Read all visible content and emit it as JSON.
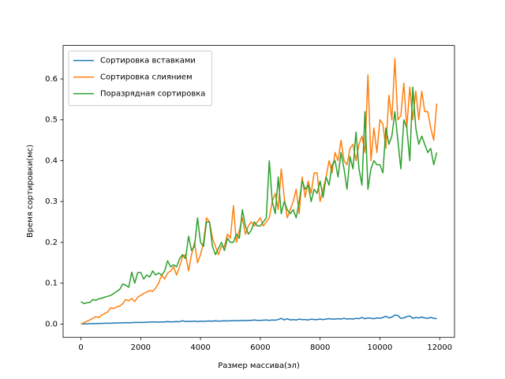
{
  "chart_data": {
    "type": "line",
    "xlabel": "Размер массива(эл)",
    "ylabel": "Время сортировки(мс)",
    "x": [
      0,
      100,
      200,
      300,
      400,
      500,
      600,
      700,
      800,
      900,
      1000,
      1100,
      1200,
      1300,
      1400,
      1500,
      1600,
      1700,
      1800,
      1900,
      2000,
      2100,
      2200,
      2300,
      2400,
      2500,
      2600,
      2700,
      2800,
      2900,
      3000,
      3100,
      3200,
      3300,
      3400,
      3500,
      3600,
      3700,
      3800,
      3900,
      4000,
      4100,
      4200,
      4300,
      4400,
      4500,
      4600,
      4700,
      4800,
      4900,
      5000,
      5100,
      5200,
      5300,
      5400,
      5500,
      5600,
      5700,
      5800,
      5900,
      6000,
      6100,
      6200,
      6300,
      6400,
      6500,
      6600,
      6700,
      6800,
      6900,
      7000,
      7100,
      7200,
      7300,
      7400,
      7500,
      7600,
      7700,
      7800,
      7900,
      8000,
      8100,
      8200,
      8300,
      8400,
      8500,
      8600,
      8700,
      8800,
      8900,
      9000,
      9100,
      9200,
      9300,
      9400,
      9500,
      9600,
      9700,
      9800,
      9900,
      10000,
      10100,
      10200,
      10300,
      10400,
      10500,
      10600,
      10700,
      10800,
      10900,
      11000,
      11100,
      11200,
      11300,
      11400,
      11500,
      11600,
      11700,
      11800,
      11900
    ],
    "series": [
      {
        "name": "Сортировка вставками",
        "color": "#1f77b4",
        "values": [
          0,
          0.0005,
          0.0005,
          0.001,
          0.001,
          0.001,
          0.0015,
          0.0015,
          0.002,
          0.002,
          0.002,
          0.0025,
          0.0025,
          0.003,
          0.003,
          0.0035,
          0.003,
          0.0035,
          0.004,
          0.004,
          0.004,
          0.004,
          0.0045,
          0.0045,
          0.005,
          0.005,
          0.0045,
          0.005,
          0.005,
          0.006,
          0.005,
          0.0055,
          0.006,
          0.0055,
          0.008,
          0.006,
          0.0065,
          0.0065,
          0.007,
          0.006,
          0.007,
          0.0065,
          0.007,
          0.0075,
          0.007,
          0.008,
          0.007,
          0.0075,
          0.008,
          0.0075,
          0.008,
          0.008,
          0.0085,
          0.008,
          0.009,
          0.0085,
          0.009,
          0.009,
          0.01,
          0.009,
          0.009,
          0.0095,
          0.01,
          0.009,
          0.01,
          0.0095,
          0.011,
          0.014,
          0.01,
          0.013,
          0.01,
          0.011,
          0.01,
          0.012,
          0.011,
          0.011,
          0.01,
          0.012,
          0.011,
          0.011,
          0.012,
          0.011,
          0.012,
          0.013,
          0.012,
          0.012,
          0.013,
          0.012,
          0.014,
          0.012,
          0.013,
          0.012,
          0.014,
          0.013,
          0.016,
          0.013,
          0.015,
          0.014,
          0.013,
          0.015,
          0.014,
          0.016,
          0.019,
          0.015,
          0.017,
          0.022,
          0.021,
          0.014,
          0.015,
          0.018,
          0.02,
          0.014,
          0.016,
          0.015,
          0.017,
          0.015,
          0.014,
          0.016,
          0.014,
          0.013
        ]
      },
      {
        "name": "Сортировка слиянием",
        "color": "#ff7f0e",
        "values": [
          0,
          0.003,
          0.007,
          0.01,
          0.014,
          0.018,
          0.016,
          0.022,
          0.026,
          0.03,
          0.04,
          0.038,
          0.042,
          0.044,
          0.05,
          0.06,
          0.057,
          0.063,
          0.055,
          0.066,
          0.07,
          0.075,
          0.078,
          0.082,
          0.08,
          0.088,
          0.1,
          0.12,
          0.11,
          0.125,
          0.13,
          0.14,
          0.12,
          0.14,
          0.165,
          0.17,
          0.13,
          0.17,
          0.2,
          0.15,
          0.17,
          0.2,
          0.26,
          0.25,
          0.21,
          0.19,
          0.17,
          0.19,
          0.19,
          0.22,
          0.21,
          0.29,
          0.2,
          0.23,
          0.26,
          0.22,
          0.24,
          0.25,
          0.24,
          0.25,
          0.26,
          0.24,
          0.25,
          0.26,
          0.3,
          0.32,
          0.28,
          0.38,
          0.31,
          0.26,
          0.28,
          0.3,
          0.33,
          0.27,
          0.36,
          0.31,
          0.35,
          0.32,
          0.37,
          0.37,
          0.3,
          0.33,
          0.36,
          0.4,
          0.37,
          0.42,
          0.4,
          0.45,
          0.4,
          0.39,
          0.43,
          0.44,
          0.4,
          0.44,
          0.46,
          0.42,
          0.61,
          0.4,
          0.48,
          0.42,
          0.5,
          0.49,
          0.43,
          0.56,
          0.5,
          0.65,
          0.5,
          0.51,
          0.59,
          0.48,
          0.58,
          0.5,
          0.57,
          0.5,
          0.57,
          0.52,
          0.52,
          0.48,
          0.45,
          0.54
        ]
      },
      {
        "name": "Поразрядная сортировка",
        "color": "#2ca02c",
        "values": [
          0.055,
          0.05,
          0.052,
          0.053,
          0.06,
          0.058,
          0.062,
          0.063,
          0.066,
          0.068,
          0.07,
          0.075,
          0.08,
          0.085,
          0.098,
          0.095,
          0.09,
          0.127,
          0.1,
          0.126,
          0.126,
          0.11,
          0.12,
          0.115,
          0.13,
          0.12,
          0.125,
          0.12,
          0.13,
          0.155,
          0.14,
          0.145,
          0.14,
          0.16,
          0.17,
          0.16,
          0.215,
          0.18,
          0.19,
          0.26,
          0.2,
          0.19,
          0.25,
          0.25,
          0.19,
          0.17,
          0.185,
          0.2,
          0.18,
          0.21,
          0.2,
          0.2,
          0.22,
          0.21,
          0.28,
          0.24,
          0.22,
          0.23,
          0.25,
          0.24,
          0.24,
          0.25,
          0.26,
          0.4,
          0.3,
          0.27,
          0.36,
          0.27,
          0.3,
          0.28,
          0.27,
          0.28,
          0.26,
          0.3,
          0.35,
          0.33,
          0.34,
          0.3,
          0.33,
          0.32,
          0.35,
          0.31,
          0.36,
          0.34,
          0.39,
          0.4,
          0.36,
          0.42,
          0.38,
          0.33,
          0.41,
          0.38,
          0.47,
          0.38,
          0.34,
          0.52,
          0.33,
          0.38,
          0.4,
          0.39,
          0.39,
          0.37,
          0.48,
          0.44,
          0.46,
          0.52,
          0.45,
          0.38,
          0.5,
          0.48,
          0.4,
          0.58,
          0.48,
          0.44,
          0.46,
          0.44,
          0.42,
          0.43,
          0.39,
          0.42
        ]
      }
    ],
    "xlim": [
      -595,
      12495
    ],
    "ylim": [
      -0.0325,
      0.682
    ],
    "xticks": [
      0,
      2000,
      4000,
      6000,
      8000,
      10000,
      12000
    ],
    "yticks": [
      {
        "value": 0,
        "label": "0.0"
      },
      0.1,
      0.2,
      0.3,
      0.4,
      0.5,
      0.6
    ],
    "legend": "upper left"
  }
}
